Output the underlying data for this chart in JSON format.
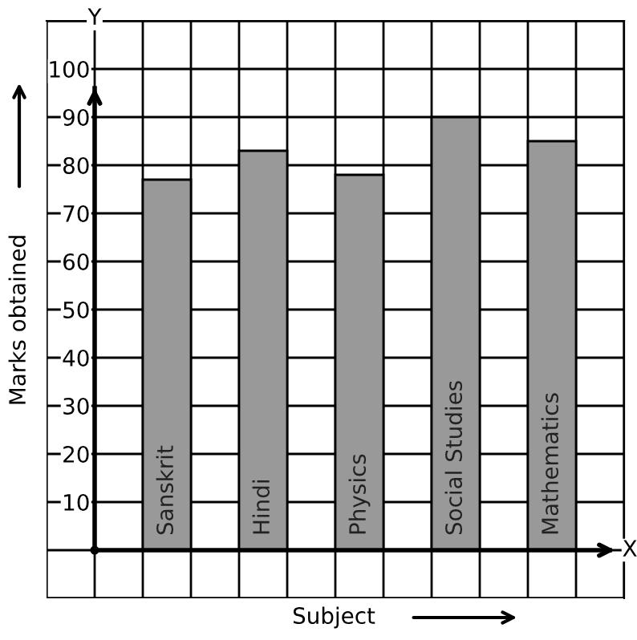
{
  "chart_data": {
    "type": "bar",
    "xlabel": "Subject",
    "ylabel": "Marks obtained",
    "categories": [
      "Sanskrit",
      "Hindi",
      "Physics",
      "Social Studies",
      "Mathematics"
    ],
    "values": [
      77,
      83,
      78,
      90,
      85
    ],
    "color": "#999999",
    "ylim": [
      -10,
      110
    ],
    "yticks": [
      10,
      20,
      30,
      40,
      50,
      60,
      70,
      80,
      90,
      100
    ],
    "grid": true,
    "annotations": [
      "X",
      "Y"
    ]
  }
}
